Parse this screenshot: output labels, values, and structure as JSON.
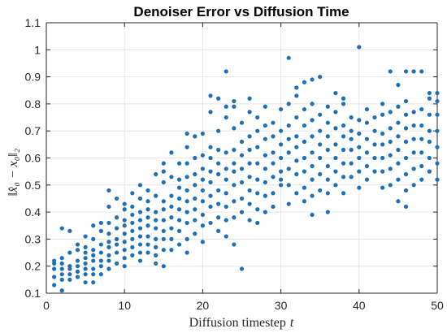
{
  "chart_data": {
    "type": "scatter",
    "title": "Denoiser Error vs Diffusion Time",
    "xlabel": "Diffusion timestep",
    "xlabel_var": "t",
    "ylabel": "‖x̂₀ − x₀‖₂",
    "xlim": [
      0,
      50
    ],
    "ylim": [
      0.1,
      1.1
    ],
    "xticks": [
      0,
      10,
      20,
      30,
      40,
      50
    ],
    "xtick_labels": [
      "0",
      "10",
      "20",
      "30",
      "40",
      "50"
    ],
    "yticks": [
      0.1,
      0.2,
      0.3,
      0.4,
      0.5,
      0.6,
      0.7,
      0.8,
      0.9,
      1.0,
      1.1
    ],
    "ytick_labels": [
      "0.1",
      "0.2",
      "0.3",
      "0.4",
      "0.5",
      "0.6",
      "0.7",
      "0.8",
      "0.9",
      "1",
      "1.1"
    ],
    "grid": true,
    "marker_color": "#1f6fb5",
    "points": [
      [
        1,
        0.13
      ],
      [
        1,
        0.16
      ],
      [
        1,
        0.19
      ],
      [
        1,
        0.21
      ],
      [
        1,
        0.22
      ],
      [
        2,
        0.11
      ],
      [
        2,
        0.15
      ],
      [
        2,
        0.17
      ],
      [
        2,
        0.19
      ],
      [
        2,
        0.21
      ],
      [
        2,
        0.23
      ],
      [
        2,
        0.34
      ],
      [
        3,
        0.15
      ],
      [
        3,
        0.17
      ],
      [
        3,
        0.19
      ],
      [
        3,
        0.2
      ],
      [
        3,
        0.25
      ],
      [
        3,
        0.33
      ],
      [
        4,
        0.16
      ],
      [
        4,
        0.18
      ],
      [
        4,
        0.2
      ],
      [
        4,
        0.22
      ],
      [
        4,
        0.26
      ],
      [
        4,
        0.28
      ],
      [
        5,
        0.14
      ],
      [
        5,
        0.17
      ],
      [
        5,
        0.19
      ],
      [
        5,
        0.21
      ],
      [
        5,
        0.23
      ],
      [
        5,
        0.25
      ],
      [
        5,
        0.27
      ],
      [
        5,
        0.31
      ],
      [
        6,
        0.14
      ],
      [
        6,
        0.17
      ],
      [
        6,
        0.19
      ],
      [
        6,
        0.22
      ],
      [
        6,
        0.24
      ],
      [
        6,
        0.26
      ],
      [
        6,
        0.3
      ],
      [
        6,
        0.35
      ],
      [
        7,
        0.17
      ],
      [
        7,
        0.2
      ],
      [
        7,
        0.22
      ],
      [
        7,
        0.25
      ],
      [
        7,
        0.28
      ],
      [
        7,
        0.33
      ],
      [
        7,
        0.36
      ],
      [
        8,
        0.19
      ],
      [
        8,
        0.22
      ],
      [
        8,
        0.24
      ],
      [
        8,
        0.27
      ],
      [
        8,
        0.29
      ],
      [
        8,
        0.32
      ],
      [
        8,
        0.36
      ],
      [
        8,
        0.42
      ],
      [
        8,
        0.48
      ],
      [
        9,
        0.21
      ],
      [
        9,
        0.25
      ],
      [
        9,
        0.28
      ],
      [
        9,
        0.3
      ],
      [
        9,
        0.34
      ],
      [
        9,
        0.38
      ],
      [
        9,
        0.45
      ],
      [
        10,
        0.2
      ],
      [
        10,
        0.23
      ],
      [
        10,
        0.26
      ],
      [
        10,
        0.29
      ],
      [
        10,
        0.32
      ],
      [
        10,
        0.35
      ],
      [
        10,
        0.37
      ],
      [
        10,
        0.41
      ],
      [
        10,
        0.43
      ],
      [
        11,
        0.24
      ],
      [
        11,
        0.27
      ],
      [
        11,
        0.3
      ],
      [
        11,
        0.33
      ],
      [
        11,
        0.36
      ],
      [
        11,
        0.39
      ],
      [
        11,
        0.42
      ],
      [
        11,
        0.47
      ],
      [
        12,
        0.22
      ],
      [
        12,
        0.25
      ],
      [
        12,
        0.28
      ],
      [
        12,
        0.31
      ],
      [
        12,
        0.34
      ],
      [
        12,
        0.37
      ],
      [
        12,
        0.4
      ],
      [
        12,
        0.45
      ],
      [
        12,
        0.5
      ],
      [
        13,
        0.25
      ],
      [
        13,
        0.28
      ],
      [
        13,
        0.31
      ],
      [
        13,
        0.35
      ],
      [
        13,
        0.38
      ],
      [
        13,
        0.41
      ],
      [
        13,
        0.44
      ],
      [
        13,
        0.48
      ],
      [
        14,
        0.21
      ],
      [
        14,
        0.24
      ],
      [
        14,
        0.27
      ],
      [
        14,
        0.3
      ],
      [
        14,
        0.34
      ],
      [
        14,
        0.37
      ],
      [
        14,
        0.4
      ],
      [
        14,
        0.46
      ],
      [
        14,
        0.54
      ],
      [
        15,
        0.2
      ],
      [
        15,
        0.26
      ],
      [
        15,
        0.3
      ],
      [
        15,
        0.33
      ],
      [
        15,
        0.37
      ],
      [
        15,
        0.41
      ],
      [
        15,
        0.44
      ],
      [
        15,
        0.51
      ],
      [
        15,
        0.55
      ],
      [
        15,
        0.58
      ],
      [
        16,
        0.26
      ],
      [
        16,
        0.3
      ],
      [
        16,
        0.34
      ],
      [
        16,
        0.38
      ],
      [
        16,
        0.42
      ],
      [
        16,
        0.46
      ],
      [
        16,
        0.53
      ],
      [
        16,
        0.62
      ],
      [
        17,
        0.28
      ],
      [
        17,
        0.33
      ],
      [
        17,
        0.37
      ],
      [
        17,
        0.41
      ],
      [
        17,
        0.45
      ],
      [
        17,
        0.49
      ],
      [
        17,
        0.52
      ],
      [
        17,
        0.58
      ],
      [
        18,
        0.25
      ],
      [
        18,
        0.3
      ],
      [
        18,
        0.36
      ],
      [
        18,
        0.4
      ],
      [
        18,
        0.44
      ],
      [
        18,
        0.48
      ],
      [
        18,
        0.53
      ],
      [
        18,
        0.58
      ],
      [
        18,
        0.64
      ],
      [
        18,
        0.69
      ],
      [
        19,
        0.32
      ],
      [
        19,
        0.37
      ],
      [
        19,
        0.41
      ],
      [
        19,
        0.45
      ],
      [
        19,
        0.5
      ],
      [
        19,
        0.54
      ],
      [
        19,
        0.6
      ],
      [
        19,
        0.68
      ],
      [
        20,
        0.29
      ],
      [
        20,
        0.35
      ],
      [
        20,
        0.39
      ],
      [
        20,
        0.44
      ],
      [
        20,
        0.48
      ],
      [
        20,
        0.52
      ],
      [
        20,
        0.56
      ],
      [
        20,
        0.61
      ],
      [
        20,
        0.69
      ],
      [
        21,
        0.36
      ],
      [
        21,
        0.42
      ],
      [
        21,
        0.46
      ],
      [
        21,
        0.51
      ],
      [
        21,
        0.55
      ],
      [
        21,
        0.6
      ],
      [
        21,
        0.64
      ],
      [
        21,
        0.77
      ],
      [
        21,
        0.83
      ],
      [
        22,
        0.33
      ],
      [
        22,
        0.38
      ],
      [
        22,
        0.43
      ],
      [
        22,
        0.48
      ],
      [
        22,
        0.54
      ],
      [
        22,
        0.58
      ],
      [
        22,
        0.63
      ],
      [
        22,
        0.7
      ],
      [
        22,
        0.82
      ],
      [
        23,
        0.31
      ],
      [
        23,
        0.37
      ],
      [
        23,
        0.42
      ],
      [
        23,
        0.47
      ],
      [
        23,
        0.52
      ],
      [
        23,
        0.56
      ],
      [
        23,
        0.62
      ],
      [
        23,
        0.75
      ],
      [
        23,
        0.79
      ],
      [
        23,
        0.92
      ],
      [
        24,
        0.28
      ],
      [
        24,
        0.38
      ],
      [
        24,
        0.44
      ],
      [
        24,
        0.5
      ],
      [
        24,
        0.55
      ],
      [
        24,
        0.58
      ],
      [
        24,
        0.63
      ],
      [
        24,
        0.71
      ],
      [
        24,
        0.79
      ],
      [
        24,
        0.81
      ],
      [
        25,
        0.19
      ],
      [
        25,
        0.4
      ],
      [
        25,
        0.45
      ],
      [
        25,
        0.51
      ],
      [
        25,
        0.56
      ],
      [
        25,
        0.61
      ],
      [
        25,
        0.66
      ],
      [
        25,
        0.73
      ],
      [
        26,
        0.37
      ],
      [
        26,
        0.43
      ],
      [
        26,
        0.48
      ],
      [
        26,
        0.53
      ],
      [
        26,
        0.58
      ],
      [
        26,
        0.63
      ],
      [
        26,
        0.68
      ],
      [
        26,
        0.77
      ],
      [
        26,
        0.82
      ],
      [
        27,
        0.36
      ],
      [
        27,
        0.41
      ],
      [
        27,
        0.47
      ],
      [
        27,
        0.52
      ],
      [
        27,
        0.58
      ],
      [
        27,
        0.64
      ],
      [
        27,
        0.7
      ],
      [
        27,
        0.75
      ],
      [
        28,
        0.4
      ],
      [
        28,
        0.46
      ],
      [
        28,
        0.51
      ],
      [
        28,
        0.56
      ],
      [
        28,
        0.61
      ],
      [
        28,
        0.67
      ],
      [
        28,
        0.72
      ],
      [
        28,
        0.79
      ],
      [
        29,
        0.42
      ],
      [
        29,
        0.47
      ],
      [
        29,
        0.53
      ],
      [
        29,
        0.58
      ],
      [
        29,
        0.62
      ],
      [
        29,
        0.68
      ],
      [
        29,
        0.73
      ],
      [
        30,
        0.5
      ],
      [
        30,
        0.52
      ],
      [
        30,
        0.55
      ],
      [
        30,
        0.6
      ],
      [
        30,
        0.65
      ],
      [
        30,
        0.7
      ],
      [
        30,
        0.78
      ],
      [
        31,
        0.43
      ],
      [
        31,
        0.5
      ],
      [
        31,
        0.56
      ],
      [
        31,
        0.62
      ],
      [
        31,
        0.67
      ],
      [
        31,
        0.72
      ],
      [
        31,
        0.8
      ],
      [
        31,
        0.97
      ],
      [
        32,
        0.47
      ],
      [
        32,
        0.54
      ],
      [
        32,
        0.59
      ],
      [
        32,
        0.64
      ],
      [
        32,
        0.68
      ],
      [
        32,
        0.75
      ],
      [
        32,
        0.83
      ],
      [
        32,
        0.86
      ],
      [
        33,
        0.44
      ],
      [
        33,
        0.49
      ],
      [
        33,
        0.55
      ],
      [
        33,
        0.6
      ],
      [
        33,
        0.66
      ],
      [
        33,
        0.72
      ],
      [
        33,
        0.78
      ],
      [
        33,
        0.88
      ],
      [
        34,
        0.39
      ],
      [
        34,
        0.46
      ],
      [
        34,
        0.52
      ],
      [
        34,
        0.57
      ],
      [
        34,
        0.62
      ],
      [
        34,
        0.68
      ],
      [
        34,
        0.74
      ],
      [
        34,
        0.8
      ],
      [
        34,
        0.89
      ],
      [
        35,
        0.48
      ],
      [
        35,
        0.54
      ],
      [
        35,
        0.6
      ],
      [
        35,
        0.65
      ],
      [
        35,
        0.7
      ],
      [
        35,
        0.76
      ],
      [
        35,
        0.9
      ],
      [
        36,
        0.4
      ],
      [
        36,
        0.47
      ],
      [
        36,
        0.52
      ],
      [
        36,
        0.57
      ],
      [
        36,
        0.63
      ],
      [
        36,
        0.68
      ],
      [
        36,
        0.73
      ],
      [
        36,
        0.79
      ],
      [
        37,
        0.5
      ],
      [
        37,
        0.55
      ],
      [
        37,
        0.6
      ],
      [
        37,
        0.65
      ],
      [
        37,
        0.71
      ],
      [
        37,
        0.77
      ],
      [
        37,
        0.84
      ],
      [
        38,
        0.47
      ],
      [
        38,
        0.53
      ],
      [
        38,
        0.58
      ],
      [
        38,
        0.63
      ],
      [
        38,
        0.68
      ],
      [
        38,
        0.72
      ],
      [
        38,
        0.8
      ],
      [
        38,
        0.82
      ],
      [
        39,
        0.53
      ],
      [
        39,
        0.58
      ],
      [
        39,
        0.63
      ],
      [
        39,
        0.67
      ],
      [
        39,
        0.7
      ],
      [
        39,
        0.75
      ],
      [
        40,
        0.49
      ],
      [
        40,
        0.55
      ],
      [
        40,
        0.6
      ],
      [
        40,
        0.64
      ],
      [
        40,
        0.69
      ],
      [
        40,
        0.74
      ],
      [
        40,
        1.01
      ],
      [
        41,
        0.52
      ],
      [
        41,
        0.57
      ],
      [
        41,
        0.62
      ],
      [
        41,
        0.67
      ],
      [
        41,
        0.73
      ],
      [
        41,
        0.78
      ],
      [
        42,
        0.55
      ],
      [
        42,
        0.6
      ],
      [
        42,
        0.65
      ],
      [
        42,
        0.7
      ],
      [
        42,
        0.75
      ],
      [
        43,
        0.49
      ],
      [
        43,
        0.55
      ],
      [
        43,
        0.6
      ],
      [
        43,
        0.65
      ],
      [
        43,
        0.69
      ],
      [
        43,
        0.76
      ],
      [
        43,
        0.8
      ],
      [
        44,
        0.5
      ],
      [
        44,
        0.56
      ],
      [
        44,
        0.61
      ],
      [
        44,
        0.66
      ],
      [
        44,
        0.71
      ],
      [
        44,
        0.77
      ],
      [
        44,
        0.92
      ],
      [
        45,
        0.44
      ],
      [
        45,
        0.52
      ],
      [
        45,
        0.58
      ],
      [
        45,
        0.63
      ],
      [
        45,
        0.68
      ],
      [
        45,
        0.73
      ],
      [
        45,
        0.79
      ],
      [
        45,
        0.87
      ],
      [
        46,
        0.42
      ],
      [
        46,
        0.48
      ],
      [
        46,
        0.54
      ],
      [
        46,
        0.6
      ],
      [
        46,
        0.66
      ],
      [
        46,
        0.71
      ],
      [
        46,
        0.76
      ],
      [
        46,
        0.81
      ],
      [
        46,
        0.92
      ],
      [
        47,
        0.5
      ],
      [
        47,
        0.56
      ],
      [
        47,
        0.62
      ],
      [
        47,
        0.67
      ],
      [
        47,
        0.72
      ],
      [
        47,
        0.77
      ],
      [
        47,
        0.92
      ],
      [
        48,
        0.52
      ],
      [
        48,
        0.57
      ],
      [
        48,
        0.62
      ],
      [
        48,
        0.67
      ],
      [
        48,
        0.72
      ],
      [
        48,
        0.78
      ],
      [
        48,
        0.92
      ],
      [
        49,
        0.55
      ],
      [
        49,
        0.6
      ],
      [
        49,
        0.66
      ],
      [
        49,
        0.7
      ],
      [
        49,
        0.76
      ],
      [
        49,
        0.82
      ],
      [
        49,
        0.84
      ],
      [
        50,
        0.52
      ],
      [
        50,
        0.58
      ],
      [
        50,
        0.64
      ],
      [
        50,
        0.7
      ],
      [
        50,
        0.76
      ],
      [
        50,
        0.81
      ],
      [
        50,
        0.84
      ]
    ]
  }
}
